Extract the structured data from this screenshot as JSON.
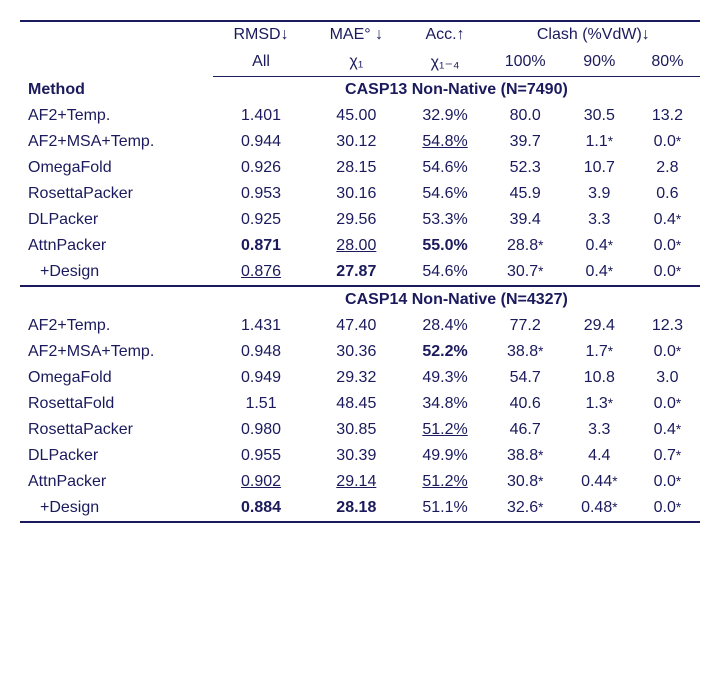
{
  "headers": {
    "rmsd": "RMSD↓",
    "mae": "MAE° ↓",
    "acc": "Acc.↑",
    "clash": "Clash (%VdW)↓",
    "all": "All",
    "chi1": "χ₁",
    "chi14": "χ₁₋₄",
    "c100": "100%",
    "c90": "90%",
    "c80": "80%",
    "method": "Method"
  },
  "sections": [
    {
      "title": "CASP13 Non-Native (N=7490)",
      "rows": [
        {
          "name": "AF2+Temp.",
          "indent": false,
          "rmsd": {
            "v": "1.401"
          },
          "mae": {
            "v": "45.00"
          },
          "acc": {
            "v": "32.9%"
          },
          "c100": {
            "v": "80.0"
          },
          "c90": {
            "v": "30.5"
          },
          "c80": {
            "v": "13.2"
          }
        },
        {
          "name": "AF2+MSA+Temp.",
          "indent": false,
          "rmsd": {
            "v": "0.944"
          },
          "mae": {
            "v": "30.12"
          },
          "acc": {
            "v": "54.8%",
            "u": true
          },
          "c100": {
            "v": "39.7"
          },
          "c90": {
            "v": "1.1",
            "s": true
          },
          "c80": {
            "v": "0.0",
            "s": true
          }
        },
        {
          "name": "OmegaFold",
          "indent": false,
          "rmsd": {
            "v": "0.926"
          },
          "mae": {
            "v": "28.15"
          },
          "acc": {
            "v": "54.6%"
          },
          "c100": {
            "v": "52.3"
          },
          "c90": {
            "v": "10.7"
          },
          "c80": {
            "v": "2.8"
          }
        },
        {
          "name": "RosettaPacker",
          "indent": false,
          "rmsd": {
            "v": "0.953"
          },
          "mae": {
            "v": "30.16"
          },
          "acc": {
            "v": "54.6%"
          },
          "c100": {
            "v": "45.9"
          },
          "c90": {
            "v": "3.9"
          },
          "c80": {
            "v": "0.6"
          }
        },
        {
          "name": "DLPacker",
          "indent": false,
          "rmsd": {
            "v": "0.925"
          },
          "mae": {
            "v": "29.56"
          },
          "acc": {
            "v": "53.3%"
          },
          "c100": {
            "v": "39.4"
          },
          "c90": {
            "v": "3.3"
          },
          "c80": {
            "v": "0.4",
            "s": true
          }
        },
        {
          "name": "AttnPacker",
          "indent": false,
          "rmsd": {
            "v": "0.871",
            "b": true
          },
          "mae": {
            "v": "28.00",
            "u": true
          },
          "acc": {
            "v": "55.0%",
            "b": true
          },
          "c100": {
            "v": "28.8",
            "s": true
          },
          "c90": {
            "v": "0.4",
            "s": true
          },
          "c80": {
            "v": "0.0",
            "s": true
          }
        },
        {
          "name": "+Design",
          "indent": true,
          "rmsd": {
            "v": "0.876",
            "u": true
          },
          "mae": {
            "v": "27.87",
            "b": true
          },
          "acc": {
            "v": "54.6%"
          },
          "c100": {
            "v": "30.7",
            "s": true
          },
          "c90": {
            "v": "0.4",
            "s": true
          },
          "c80": {
            "v": "0.0",
            "s": true
          }
        }
      ]
    },
    {
      "title": "CASP14 Non-Native (N=4327)",
      "rows": [
        {
          "name": "AF2+Temp.",
          "indent": false,
          "rmsd": {
            "v": "1.431"
          },
          "mae": {
            "v": "47.40"
          },
          "acc": {
            "v": "28.4%"
          },
          "c100": {
            "v": "77.2"
          },
          "c90": {
            "v": "29.4"
          },
          "c80": {
            "v": "12.3"
          }
        },
        {
          "name": "AF2+MSA+Temp.",
          "indent": false,
          "rmsd": {
            "v": "0.948"
          },
          "mae": {
            "v": "30.36"
          },
          "acc": {
            "v": "52.2%",
            "b": true
          },
          "c100": {
            "v": "38.8",
            "s": true
          },
          "c90": {
            "v": "1.7",
            "s": true
          },
          "c80": {
            "v": "0.0",
            "s": true
          }
        },
        {
          "name": "OmegaFold",
          "indent": false,
          "rmsd": {
            "v": "0.949"
          },
          "mae": {
            "v": "29.32"
          },
          "acc": {
            "v": "49.3%"
          },
          "c100": {
            "v": "54.7"
          },
          "c90": {
            "v": "10.8"
          },
          "c80": {
            "v": "3.0"
          }
        },
        {
          "name": "RosettaFold",
          "indent": false,
          "rmsd": {
            "v": "1.51"
          },
          "mae": {
            "v": "48.45"
          },
          "acc": {
            "v": "34.8%"
          },
          "c100": {
            "v": "40.6"
          },
          "c90": {
            "v": "1.3",
            "s": true
          },
          "c80": {
            "v": "0.0",
            "s": true
          }
        },
        {
          "name": "RosettaPacker",
          "indent": false,
          "rmsd": {
            "v": "0.980"
          },
          "mae": {
            "v": "30.85"
          },
          "acc": {
            "v": "51.2%",
            "u": true
          },
          "c100": {
            "v": "46.7"
          },
          "c90": {
            "v": "3.3"
          },
          "c80": {
            "v": "0.4",
            "s": true
          }
        },
        {
          "name": "DLPacker",
          "indent": false,
          "rmsd": {
            "v": "0.955"
          },
          "mae": {
            "v": "30.39"
          },
          "acc": {
            "v": "49.9%"
          },
          "c100": {
            "v": "38.8",
            "s": true
          },
          "c90": {
            "v": "4.4"
          },
          "c80": {
            "v": "0.7",
            "s": true
          }
        },
        {
          "name": "AttnPacker",
          "indent": false,
          "rmsd": {
            "v": "0.902",
            "u": true
          },
          "mae": {
            "v": "29.14",
            "u": true
          },
          "acc": {
            "v": "51.2%",
            "u": true
          },
          "c100": {
            "v": "30.8",
            "s": true
          },
          "c90": {
            "v": "0.44",
            "s": true
          },
          "c80": {
            "v": "0.0",
            "s": true
          }
        },
        {
          "name": "+Design",
          "indent": true,
          "rmsd": {
            "v": "0.884",
            "b": true
          },
          "mae": {
            "v": "28.18",
            "b": true
          },
          "acc": {
            "v": "51.1%"
          },
          "c100": {
            "v": "32.6",
            "s": true
          },
          "c90": {
            "v": "0.48",
            "s": true
          },
          "c80": {
            "v": "0.0",
            "s": true
          }
        }
      ]
    }
  ],
  "style": {
    "text_color": "#1a1a5c",
    "rule_color": "#1a1a5c",
    "font_size_pt": 16
  }
}
